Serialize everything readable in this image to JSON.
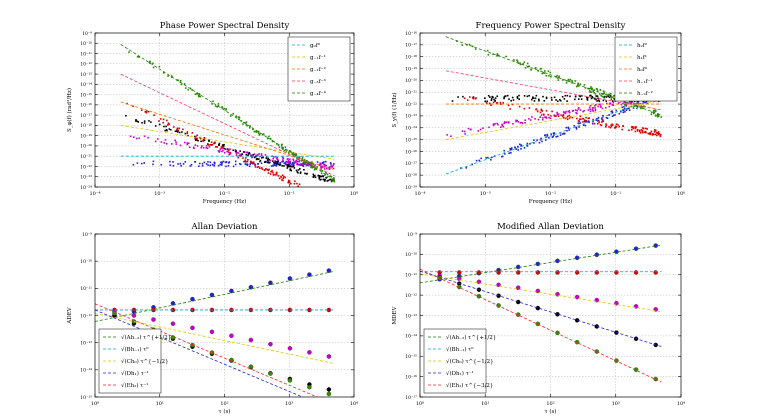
{
  "chart_data": [
    {
      "type": "scatter",
      "title": "Phase Power Spectral Density",
      "xlabel": "Frequency (Hz)",
      "ylabel": "S_φ(f) (rad²/Hz)",
      "xscale": "log",
      "yscale": "log",
      "xlim": [
        0.0001,
        1
      ],
      "ylim": [
        1e-24,
        1e-09
      ],
      "xticks": [
        "10⁻⁴",
        "10⁻³",
        "10⁻²",
        "10⁻¹",
        "10⁰"
      ],
      "yticks": [
        "10⁻²⁴",
        "10⁻²³",
        "10⁻²²",
        "10⁻²¹",
        "10⁻²⁰",
        "10⁻¹⁹",
        "10⁻¹⁸",
        "10⁻¹⁷",
        "10⁻¹⁶",
        "10⁻¹⁵",
        "10⁻¹⁴",
        "10⁻¹³",
        "10⁻¹²",
        "10⁻¹¹",
        "10⁻¹⁰",
        "10⁻⁹"
      ],
      "grid": true,
      "legend_position": "top-right",
      "series": [
        {
          "name": "g₀f⁰",
          "color": "#00a8c8",
          "slope": 0,
          "y_at_1e-3": 1e-21,
          "fmin": 0.00025,
          "fmax": 0.5
        },
        {
          "name": "g₋₁f⁻¹",
          "color": "#e8c200",
          "slope": -1,
          "y_at_1e-3": 2.5e-19,
          "fmin": 0.00025,
          "fmax": 0.5
        },
        {
          "name": "g₋₂f⁻²",
          "color": "#ff6a00",
          "slope": -2,
          "y_at_1e-3": 1.2e-17,
          "fmin": 0.00025,
          "fmax": 0.5
        },
        {
          "name": "g₋₃f⁻³",
          "color": "#ff3060",
          "slope": -3,
          "y_at_1e-3": 1.5e-15,
          "fmin": 0.00025,
          "fmax": 0.5
        },
        {
          "name": "g₋₄f⁻⁴",
          "color": "#1a7f00",
          "slope": -4,
          "y_at_1e-3": 3e-13,
          "fmin": 0.00025,
          "fmax": 0.5
        }
      ],
      "point_sets": [
        {
          "color": "#2222dd",
          "slope": 0,
          "y_at_1e-3": 1.8e-22
        },
        {
          "color": "#cc00cc",
          "slope": -1,
          "y_at_1e-3": 3.5e-20
        },
        {
          "color": "#000000",
          "slope": -2,
          "y_at_1e-3": 8e-19
        },
        {
          "color": "#dd0000",
          "slope": -3,
          "y_at_1e-3": 4e-18
        },
        {
          "color": "#2a8a00",
          "slope": -4,
          "y_at_1e-3": 3e-13
        }
      ]
    },
    {
      "type": "scatter",
      "title": "Frequency Power Spectral Density",
      "xlabel": "Frequency (Hz)",
      "ylabel": "S_y(f) (1/Hz)",
      "xscale": "log",
      "yscale": "log",
      "xlim": [
        0.0001,
        1
      ],
      "ylim": [
        1e-29,
        1e-16
      ],
      "xticks": [
        "10⁻⁴",
        "10⁻³",
        "10⁻²",
        "10⁻¹",
        "10⁰"
      ],
      "yticks": [
        "10⁻²⁹",
        "10⁻²⁸",
        "10⁻²⁷",
        "10⁻²⁶",
        "10⁻²⁵",
        "10⁻²⁴",
        "10⁻²³",
        "10⁻²²",
        "10⁻²¹",
        "10⁻²⁰",
        "10⁻¹⁹",
        "10⁻¹⁸",
        "10⁻¹⁷",
        "10⁻¹⁶"
      ],
      "grid": true,
      "legend_position": "top-right",
      "series": [
        {
          "name": "h₂f²",
          "color": "#00a8c8",
          "slope": 2,
          "y_at_1e-3": 2e-27,
          "fmin": 0.00025,
          "fmax": 0.5
        },
        {
          "name": "h₁f¹",
          "color": "#e8c200",
          "slope": 1,
          "y_at_1e-3": 4e-25,
          "fmin": 0.00025,
          "fmax": 0.5
        },
        {
          "name": "h₀f⁰",
          "color": "#ff6a00",
          "slope": 0,
          "y_at_1e-3": 1e-22,
          "fmin": 0.00025,
          "fmax": 0.5
        },
        {
          "name": "h₋₁f⁻¹",
          "color": "#ff3060",
          "slope": -1,
          "y_at_1e-3": 1.6e-20,
          "fmin": 0.00025,
          "fmax": 0.5
        },
        {
          "name": "h₋₂f⁻²",
          "color": "#1a7f00",
          "slope": -2,
          "y_at_1e-3": 3e-18,
          "fmin": 0.00025,
          "fmax": 0.5
        }
      ],
      "point_sets": [
        {
          "color": "#2222dd",
          "slope": 2,
          "y_at_1e-3": 2e-27
        },
        {
          "color": "#cc00cc",
          "slope": 1,
          "y_at_1e-3": 1e-24
        },
        {
          "color": "#000000",
          "slope": 0,
          "y_at_1e-3": 3e-22
        },
        {
          "color": "#dd0000",
          "slope": -1,
          "y_at_1e-3": 1.5e-22
        },
        {
          "color": "#2a8a00",
          "slope": -2,
          "y_at_1e-3": 3e-18
        }
      ]
    },
    {
      "type": "scatter",
      "title": "Allan Deviation",
      "xlabel": "τ (s)",
      "ylabel": "ADEV",
      "xscale": "log",
      "yscale": "log",
      "xlim": [
        1,
        10000
      ],
      "ylim": [
        1e-15,
        1e-09
      ],
      "xticks": [
        "10⁰",
        "10¹",
        "10²",
        "10³",
        "10⁴"
      ],
      "yticks": [
        "10⁻¹⁵",
        "10⁻¹⁴",
        "10⁻¹³",
        "10⁻¹²",
        "10⁻¹¹",
        "10⁻¹⁰",
        "10⁻⁹"
      ],
      "grid": true,
      "legend_position": "bottom-left",
      "series": [
        {
          "name": "√(Ah₋₂) τ^{+1/2}",
          "color": "#1a7f00",
          "slope": 0.5,
          "y_at_1": 6e-13,
          "fmin": 1,
          "fmax": 5000
        },
        {
          "name": "√(Bh₋₁) τ⁰",
          "color": "#00a8c8",
          "slope": 0,
          "y_at_1": 1.6e-12,
          "fmin": 1,
          "fmax": 5000
        },
        {
          "name": "√(Ch₀) τ^{−1/2}",
          "color": "#e8c200",
          "slope": -0.5,
          "y_at_1": 1.2e-12,
          "fmin": 1,
          "fmax": 5000
        },
        {
          "name": "√(Dh₁) τ⁻¹",
          "color": "#2222dd",
          "slope": -1,
          "y_at_1": 1.6e-12,
          "fmin": 1,
          "fmax": 5000
        },
        {
          "name": "√(Eh₂) τ⁻¹",
          "color": "#ff2020",
          "slope": -1,
          "y_at_1": 2.7e-12,
          "fmin": 1,
          "fmax": 5000
        }
      ],
      "tau": [
        2,
        4,
        8,
        16,
        32,
        64,
        128,
        256,
        512,
        1024,
        2048,
        4096
      ],
      "point_sets": [
        {
          "color": "#2222dd",
          "values": [
            1e-12,
            1.4e-12,
            2e-12,
            2.8e-12,
            4e-12,
            5.7e-12,
            8e-12,
            1.1e-11,
            1.6e-11,
            2.3e-11,
            3.2e-11,
            4.5e-11
          ]
        },
        {
          "color": "#dd0000",
          "values": [
            1.6e-12,
            1.6e-12,
            1.6e-12,
            1.6e-12,
            1.6e-12,
            1.6e-12,
            1.6e-12,
            1.6e-12,
            1.6e-12,
            1.6e-12,
            1.6e-12,
            1.6e-12
          ]
        },
        {
          "color": "#cc00cc",
          "values": [
            1.4e-12,
            1e-12,
            7.1e-13,
            5e-13,
            3.5e-13,
            2.5e-13,
            1.8e-13,
            1.25e-13,
            8.8e-14,
            6.2e-14,
            4.4e-14,
            3.1e-14
          ]
        },
        {
          "color": "#000000",
          "values": [
            1e-12,
            5.1e-13,
            2.6e-13,
            1.4e-13,
            7.1e-14,
            3.9e-14,
            2.2e-14,
            1.25e-14,
            7.5e-15,
            4.6e-15,
            2.9e-15,
            1.9e-15
          ]
        },
        {
          "color": "#3a8a00",
          "values": [
            1.2e-12,
            6e-13,
            3e-13,
            1.55e-13,
            8.1e-14,
            4.3e-14,
            2.3e-14,
            1.3e-14,
            7.3e-15,
            4.1e-15,
            2.3e-15,
            1.3e-15
          ]
        }
      ]
    },
    {
      "type": "scatter",
      "title": "Modified Allan Deviation",
      "xlabel": "τ (s)",
      "ylabel": "MDEV",
      "xscale": "log",
      "yscale": "log",
      "xlim": [
        1,
        10000
      ],
      "ylim": [
        1e-17,
        1e-09
      ],
      "xticks": [
        "10⁰",
        "10¹",
        "10²",
        "10³",
        "10⁴"
      ],
      "yticks": [
        "10⁻¹⁷",
        "10⁻¹⁶",
        "10⁻¹⁵",
        "10⁻¹⁴",
        "10⁻¹³",
        "10⁻¹²",
        "10⁻¹¹",
        "10⁻¹⁰",
        "10⁻⁹"
      ],
      "grid": true,
      "legend_position": "bottom-left",
      "series": [
        {
          "name": "√(Ah₋₂) τ^{+1/2}",
          "color": "#1a7f00",
          "slope": 0.5,
          "y_at_1": 4e-12,
          "fmin": 1,
          "fmax": 5000
        },
        {
          "name": "√(Bh₋₁) τ⁰",
          "color": "#00a8c8",
          "slope": 0,
          "y_at_1": 1.4e-11,
          "fmin": 1,
          "fmax": 5000
        },
        {
          "name": "√(Ch₀) τ^{−1/2}",
          "color": "#e8c200",
          "slope": -0.5,
          "y_at_1": 1.1e-11,
          "fmin": 1,
          "fmax": 5000
        },
        {
          "name": "√(Dh₁) τ⁻¹",
          "color": "#2222dd",
          "slope": -1,
          "y_at_1": 1.5e-11,
          "fmin": 1,
          "fmax": 5000
        },
        {
          "name": "√(Eh₂) τ^{−3/2}",
          "color": "#ff2020",
          "slope": -1.5,
          "y_at_1": 1.9e-11,
          "fmin": 1,
          "fmax": 5000
        }
      ],
      "tau": [
        2,
        4,
        8,
        16,
        32,
        64,
        128,
        256,
        512,
        1024,
        2048,
        4096
      ],
      "point_sets": [
        {
          "color": "#2222dd",
          "values": [
            6e-12,
            8.5e-12,
            1.2e-11,
            1.7e-11,
            2.4e-11,
            3.4e-11,
            4.8e-11,
            6.8e-11,
            9.6e-11,
            1.35e-10,
            1.9e-10,
            2.7e-10
          ]
        },
        {
          "color": "#dd0000",
          "values": [
            1.3e-11,
            1.3e-11,
            1.3e-11,
            1.3e-11,
            1.3e-11,
            1.3e-11,
            1.3e-11,
            1.3e-11,
            1.3e-11,
            1.3e-11,
            1.3e-11,
            1.3e-11
          ]
        },
        {
          "color": "#cc00cc",
          "values": [
            9e-12,
            6.4e-12,
            4.5e-12,
            3.2e-12,
            2.3e-12,
            1.6e-12,
            1.1e-12,
            8e-13,
            5.7e-13,
            4e-13,
            2.8e-13,
            2e-13
          ]
        },
        {
          "color": "#000000",
          "values": [
            7.5e-12,
            3.7e-12,
            1.85e-12,
            9.3e-13,
            4.6e-13,
            2.3e-13,
            1.15e-13,
            5.8e-14,
            2.9e-14,
            1.45e-14,
            7.2e-15,
            3.6e-15
          ]
        },
        {
          "color": "#3a8a00",
          "values": [
            7e-12,
            2.5e-12,
            8.8e-13,
            3.1e-13,
            1.1e-13,
            3.9e-14,
            1.4e-14,
            4.9e-15,
            1.7e-15,
            6.1e-16,
            2.2e-16,
            7.6e-17
          ]
        }
      ]
    }
  ]
}
